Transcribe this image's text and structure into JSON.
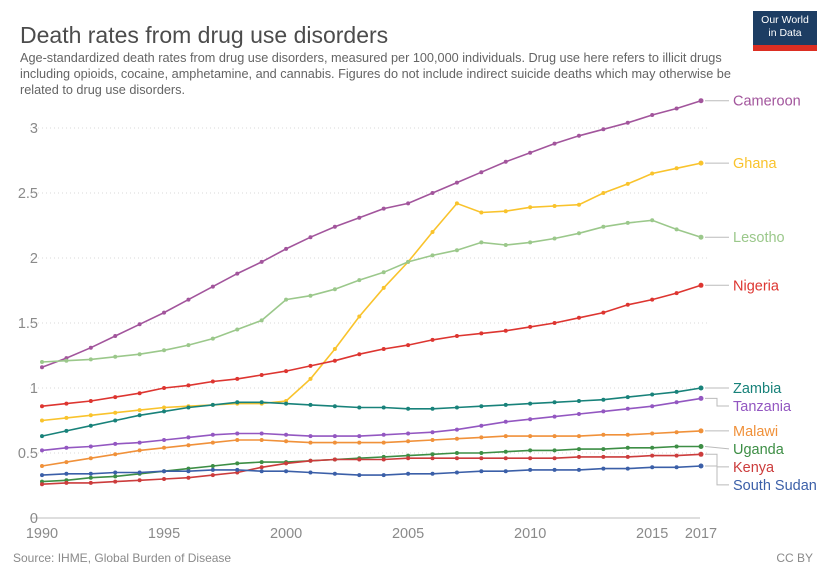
{
  "header": {
    "title": "Death rates from drug use disorders",
    "subtitle": "Age-standardized death rates from drug use disorders, measured per 100,000 individuals. Drug use here refers to illicit drugs including opioids, cocaine, amphetamine, and cannabis. Figures do not include indirect suicide deaths which may otherwise be related to drug use disorders.",
    "logo": {
      "line1": "Our World",
      "line2": "in Data",
      "bg_color": "#1d3d63",
      "stripe_color": "#dc2e22"
    }
  },
  "footer": {
    "source": "Source: IHME, Global Burden of Disease",
    "license": "CC BY"
  },
  "chart_data": {
    "type": "line",
    "title": "Death rates from drug use disorders",
    "xlabel": "",
    "ylabel": "",
    "grid": "horizontal dotted",
    "legend_position": "right edge line labels",
    "xlim": [
      1990,
      2017
    ],
    "ylim": [
      0,
      3.25
    ],
    "x_ticks": [
      1990,
      1995,
      2000,
      2005,
      2010,
      2015,
      2017
    ],
    "y_ticks": [
      0,
      0.5,
      1,
      1.5,
      2,
      2.5,
      3
    ],
    "axis_color": "#8a8a8a",
    "gridline_color": "#dadada",
    "baseline_color": "#bdbdbd",
    "connector_color": "#bbbbbb",
    "x": [
      1990,
      1991,
      1992,
      1993,
      1994,
      1995,
      1996,
      1997,
      1998,
      1999,
      2000,
      2001,
      2002,
      2003,
      2004,
      2005,
      2006,
      2007,
      2008,
      2009,
      2010,
      2011,
      2012,
      2013,
      2014,
      2015,
      2016,
      2017
    ],
    "series": [
      {
        "id": "cameroon",
        "name": "Cameroon",
        "color": "#a2559c",
        "values": [
          1.16,
          1.23,
          1.31,
          1.4,
          1.49,
          1.58,
          1.68,
          1.78,
          1.88,
          1.97,
          2.07,
          2.16,
          2.24,
          2.31,
          2.38,
          2.42,
          2.5,
          2.58,
          2.66,
          2.74,
          2.81,
          2.88,
          2.94,
          2.99,
          3.04,
          3.1,
          3.15,
          3.21
        ]
      },
      {
        "id": "ghana",
        "name": "Ghana",
        "color": "#f9c32c",
        "values": [
          0.75,
          0.77,
          0.79,
          0.81,
          0.83,
          0.85,
          0.86,
          0.87,
          0.88,
          0.88,
          0.9,
          1.07,
          1.3,
          1.55,
          1.77,
          1.97,
          2.2,
          2.42,
          2.35,
          2.36,
          2.39,
          2.4,
          2.41,
          2.5,
          2.57,
          2.65,
          2.69,
          2.73
        ]
      },
      {
        "id": "lesotho",
        "name": "Lesotho",
        "color": "#9bc88b",
        "values": [
          1.2,
          1.21,
          1.22,
          1.24,
          1.26,
          1.29,
          1.33,
          1.38,
          1.45,
          1.52,
          1.68,
          1.71,
          1.76,
          1.83,
          1.89,
          1.97,
          2.02,
          2.06,
          2.12,
          2.1,
          2.12,
          2.15,
          2.19,
          2.24,
          2.27,
          2.29,
          2.22,
          2.16
        ]
      },
      {
        "id": "nigeria",
        "name": "Nigeria",
        "color": "#dd3530",
        "values": [
          0.86,
          0.88,
          0.9,
          0.93,
          0.96,
          1.0,
          1.02,
          1.05,
          1.07,
          1.1,
          1.13,
          1.17,
          1.21,
          1.26,
          1.3,
          1.33,
          1.37,
          1.4,
          1.42,
          1.44,
          1.47,
          1.5,
          1.54,
          1.58,
          1.64,
          1.68,
          1.73,
          1.79
        ]
      },
      {
        "id": "zambia",
        "name": "Zambia",
        "color": "#18827a",
        "values": [
          0.63,
          0.67,
          0.71,
          0.75,
          0.79,
          0.82,
          0.85,
          0.87,
          0.89,
          0.89,
          0.88,
          0.87,
          0.86,
          0.85,
          0.85,
          0.84,
          0.84,
          0.85,
          0.86,
          0.87,
          0.88,
          0.89,
          0.9,
          0.91,
          0.93,
          0.95,
          0.97,
          1.0
        ]
      },
      {
        "id": "tanzania",
        "name": "Tanzania",
        "color": "#9357c1",
        "values": [
          0.52,
          0.54,
          0.55,
          0.57,
          0.58,
          0.6,
          0.62,
          0.64,
          0.65,
          0.65,
          0.64,
          0.63,
          0.63,
          0.63,
          0.64,
          0.65,
          0.66,
          0.68,
          0.71,
          0.74,
          0.76,
          0.78,
          0.8,
          0.82,
          0.84,
          0.86,
          0.89,
          0.92
        ]
      },
      {
        "id": "malawi",
        "name": "Malawi",
        "color": "#f0913a",
        "values": [
          0.4,
          0.43,
          0.46,
          0.49,
          0.52,
          0.54,
          0.56,
          0.58,
          0.6,
          0.6,
          0.59,
          0.58,
          0.58,
          0.58,
          0.58,
          0.59,
          0.6,
          0.61,
          0.62,
          0.63,
          0.63,
          0.63,
          0.63,
          0.64,
          0.64,
          0.65,
          0.66,
          0.67
        ]
      },
      {
        "id": "uganda",
        "name": "Uganda",
        "color": "#3d8e45",
        "values": [
          0.28,
          0.29,
          0.31,
          0.32,
          0.34,
          0.36,
          0.38,
          0.4,
          0.42,
          0.43,
          0.43,
          0.44,
          0.45,
          0.46,
          0.47,
          0.48,
          0.49,
          0.5,
          0.5,
          0.51,
          0.52,
          0.52,
          0.53,
          0.53,
          0.54,
          0.54,
          0.55,
          0.55
        ]
      },
      {
        "id": "kenya",
        "name": "Kenya",
        "color": "#cc3c3c",
        "values": [
          0.26,
          0.27,
          0.27,
          0.28,
          0.29,
          0.3,
          0.31,
          0.33,
          0.35,
          0.39,
          0.42,
          0.44,
          0.45,
          0.45,
          0.45,
          0.46,
          0.46,
          0.46,
          0.46,
          0.46,
          0.46,
          0.46,
          0.47,
          0.47,
          0.47,
          0.48,
          0.48,
          0.49
        ]
      },
      {
        "id": "south-sudan",
        "name": "South Sudan",
        "color": "#3b5fa8",
        "values": [
          0.33,
          0.34,
          0.34,
          0.35,
          0.35,
          0.36,
          0.36,
          0.37,
          0.37,
          0.36,
          0.36,
          0.35,
          0.34,
          0.33,
          0.33,
          0.34,
          0.34,
          0.35,
          0.36,
          0.36,
          0.37,
          0.37,
          0.37,
          0.38,
          0.38,
          0.39,
          0.39,
          0.4
        ]
      }
    ]
  }
}
